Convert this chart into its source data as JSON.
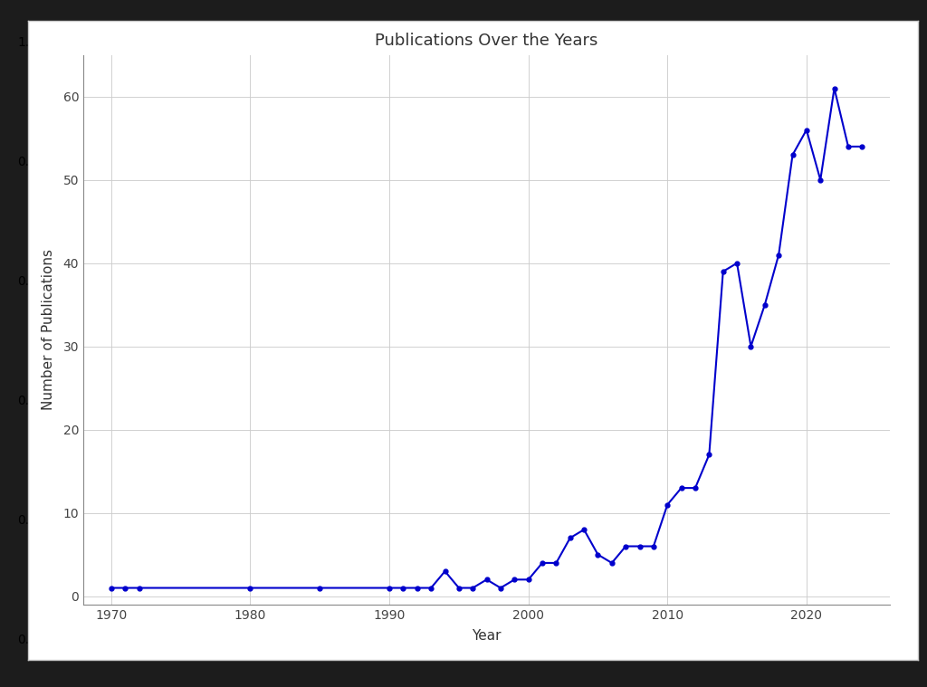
{
  "title": "Publications Over the Years",
  "xlabel": "Year",
  "ylabel": "Number of Publications",
  "line_color": "#0000CC",
  "marker_color": "#0000CC",
  "background_color": "#FFFFFF",
  "fig_background_color": "#F0F0F0",
  "grid_color": "#CCCCCC",
  "years": [
    1970,
    1971,
    1972,
    1980,
    1985,
    1990,
    1991,
    1992,
    1993,
    1994,
    1995,
    1996,
    1997,
    1998,
    1999,
    2000,
    2001,
    2002,
    2003,
    2004,
    2005,
    2006,
    2007,
    2008,
    2009,
    2010,
    2011,
    2012,
    2013,
    2014,
    2015,
    2016,
    2017,
    2018,
    2019,
    2020,
    2021,
    2022,
    2023,
    2024
  ],
  "publications": [
    1,
    1,
    1,
    1,
    1,
    1,
    1,
    1,
    1,
    3,
    1,
    1,
    2,
    1,
    2,
    2,
    4,
    4,
    7,
    8,
    5,
    4,
    6,
    6,
    6,
    11,
    13,
    13,
    17,
    39,
    40,
    30,
    35,
    41,
    53,
    56,
    50,
    61,
    54,
    54
  ],
  "xlim": [
    1968,
    2026
  ],
  "ylim": [
    -1,
    65
  ],
  "xticks": [
    1970,
    1980,
    1990,
    2000,
    2010,
    2020
  ],
  "yticks": [
    0,
    10,
    20,
    30,
    40,
    50,
    60
  ],
  "title_fontsize": 13,
  "axis_label_fontsize": 11,
  "tick_fontsize": 10,
  "linewidth": 1.5,
  "markersize": 3.5
}
